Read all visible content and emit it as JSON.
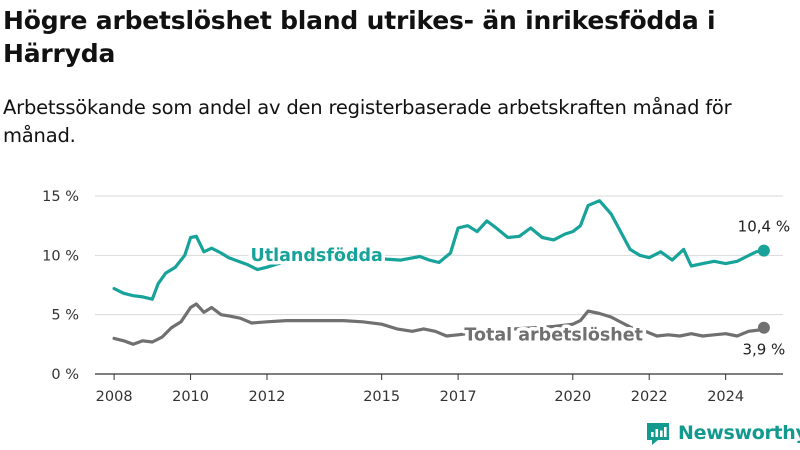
{
  "title": "Högre arbetslöshet bland utrikes- än inrikesfödda i Härryda",
  "subtitle": "Arbetssökande som andel av den registerbaserade arbetskraften månad för månad.",
  "brand": "Newsworthy",
  "colors": {
    "utlandsfodda": "#17a399",
    "total": "#707070",
    "brand": "#139a8f"
  },
  "chart_data": {
    "type": "line",
    "x_unit": "year",
    "xlim": [
      2007.5,
      2025.5
    ],
    "ylim": [
      0,
      15
    ],
    "y_ticks": [
      {
        "value": 0,
        "label": "0 %"
      },
      {
        "value": 5,
        "label": "5 %"
      },
      {
        "value": 10,
        "label": "10 %"
      },
      {
        "value": 15,
        "label": "15 %"
      }
    ],
    "x_ticks": [
      {
        "value": 2008,
        "label": "2008"
      },
      {
        "value": 2010,
        "label": "2010"
      },
      {
        "value": 2012,
        "label": "2012"
      },
      {
        "value": 2015,
        "label": "2015"
      },
      {
        "value": 2017,
        "label": "2017"
      },
      {
        "value": 2020,
        "label": "2020"
      },
      {
        "value": 2022,
        "label": "2022"
      },
      {
        "value": 2024,
        "label": "2024"
      }
    ],
    "grid": "horizontal",
    "series": [
      {
        "name": "Utlandsfödda",
        "color": "#17a399",
        "end_label": "10,4 %",
        "points": [
          [
            2008.0,
            7.2
          ],
          [
            2008.25,
            6.8
          ],
          [
            2008.5,
            6.6
          ],
          [
            2008.75,
            6.5
          ],
          [
            2009.0,
            6.3
          ],
          [
            2009.15,
            7.6
          ],
          [
            2009.35,
            8.5
          ],
          [
            2009.6,
            9.0
          ],
          [
            2009.85,
            10.0
          ],
          [
            2010.0,
            11.5
          ],
          [
            2010.15,
            11.6
          ],
          [
            2010.35,
            10.3
          ],
          [
            2010.55,
            10.6
          ],
          [
            2010.8,
            10.2
          ],
          [
            2011.0,
            9.8
          ],
          [
            2011.25,
            9.5
          ],
          [
            2011.5,
            9.2
          ],
          [
            2011.75,
            8.8
          ],
          [
            2012.0,
            9.0
          ],
          [
            2012.3,
            9.3
          ],
          [
            2012.6,
            9.6
          ],
          [
            2013.0,
            10.0
          ],
          [
            2013.5,
            10.2
          ],
          [
            2014.0,
            10.0
          ],
          [
            2014.5,
            9.8
          ],
          [
            2015.0,
            9.7
          ],
          [
            2015.5,
            9.6
          ],
          [
            2016.0,
            9.9
          ],
          [
            2016.25,
            9.6
          ],
          [
            2016.5,
            9.4
          ],
          [
            2016.8,
            10.2
          ],
          [
            2017.0,
            12.3
          ],
          [
            2017.25,
            12.5
          ],
          [
            2017.5,
            12.0
          ],
          [
            2017.75,
            12.9
          ],
          [
            2018.0,
            12.3
          ],
          [
            2018.3,
            11.5
          ],
          [
            2018.6,
            11.6
          ],
          [
            2018.9,
            12.3
          ],
          [
            2019.2,
            11.5
          ],
          [
            2019.5,
            11.3
          ],
          [
            2019.8,
            11.8
          ],
          [
            2020.0,
            12.0
          ],
          [
            2020.2,
            12.5
          ],
          [
            2020.4,
            14.2
          ],
          [
            2020.7,
            14.6
          ],
          [
            2021.0,
            13.5
          ],
          [
            2021.25,
            12.0
          ],
          [
            2021.5,
            10.5
          ],
          [
            2021.75,
            10.0
          ],
          [
            2022.0,
            9.8
          ],
          [
            2022.3,
            10.3
          ],
          [
            2022.6,
            9.6
          ],
          [
            2022.9,
            10.5
          ],
          [
            2023.1,
            9.1
          ],
          [
            2023.4,
            9.3
          ],
          [
            2023.7,
            9.5
          ],
          [
            2024.0,
            9.3
          ],
          [
            2024.3,
            9.5
          ],
          [
            2024.55,
            9.9
          ],
          [
            2024.8,
            10.3
          ],
          [
            2025.0,
            10.4
          ]
        ],
        "label": {
          "text": "Utlandsfödda",
          "x": 2013.3,
          "y": 10.1
        }
      },
      {
        "name": "Total arbetslöshet",
        "color": "#707070",
        "end_label": "3,9 %",
        "points": [
          [
            2008.0,
            3.0
          ],
          [
            2008.25,
            2.8
          ],
          [
            2008.5,
            2.5
          ],
          [
            2008.75,
            2.8
          ],
          [
            2009.0,
            2.7
          ],
          [
            2009.25,
            3.1
          ],
          [
            2009.5,
            3.9
          ],
          [
            2009.75,
            4.4
          ],
          [
            2010.0,
            5.6
          ],
          [
            2010.15,
            5.9
          ],
          [
            2010.35,
            5.2
          ],
          [
            2010.55,
            5.6
          ],
          [
            2010.8,
            5.0
          ],
          [
            2011.0,
            4.9
          ],
          [
            2011.3,
            4.7
          ],
          [
            2011.6,
            4.3
          ],
          [
            2012.0,
            4.4
          ],
          [
            2012.5,
            4.5
          ],
          [
            2013.0,
            4.5
          ],
          [
            2013.5,
            4.5
          ],
          [
            2014.0,
            4.5
          ],
          [
            2014.5,
            4.4
          ],
          [
            2015.0,
            4.2
          ],
          [
            2015.4,
            3.8
          ],
          [
            2015.8,
            3.6
          ],
          [
            2016.1,
            3.8
          ],
          [
            2016.4,
            3.6
          ],
          [
            2016.7,
            3.2
          ],
          [
            2017.0,
            3.3
          ],
          [
            2017.5,
            3.5
          ],
          [
            2018.0,
            3.6
          ],
          [
            2018.5,
            3.8
          ],
          [
            2019.0,
            3.9
          ],
          [
            2019.5,
            4.0
          ],
          [
            2020.0,
            4.2
          ],
          [
            2020.2,
            4.5
          ],
          [
            2020.4,
            5.3
          ],
          [
            2020.7,
            5.1
          ],
          [
            2021.0,
            4.8
          ],
          [
            2021.3,
            4.3
          ],
          [
            2021.6,
            3.8
          ],
          [
            2021.9,
            3.6
          ],
          [
            2022.2,
            3.2
          ],
          [
            2022.5,
            3.3
          ],
          [
            2022.8,
            3.2
          ],
          [
            2023.1,
            3.4
          ],
          [
            2023.4,
            3.2
          ],
          [
            2023.7,
            3.3
          ],
          [
            2024.0,
            3.4
          ],
          [
            2024.3,
            3.2
          ],
          [
            2024.6,
            3.6
          ],
          [
            2024.85,
            3.7
          ],
          [
            2025.0,
            3.9
          ]
        ],
        "label": {
          "text": "Total arbetslöshet",
          "x": 2019.5,
          "y": 3.4
        }
      }
    ]
  }
}
